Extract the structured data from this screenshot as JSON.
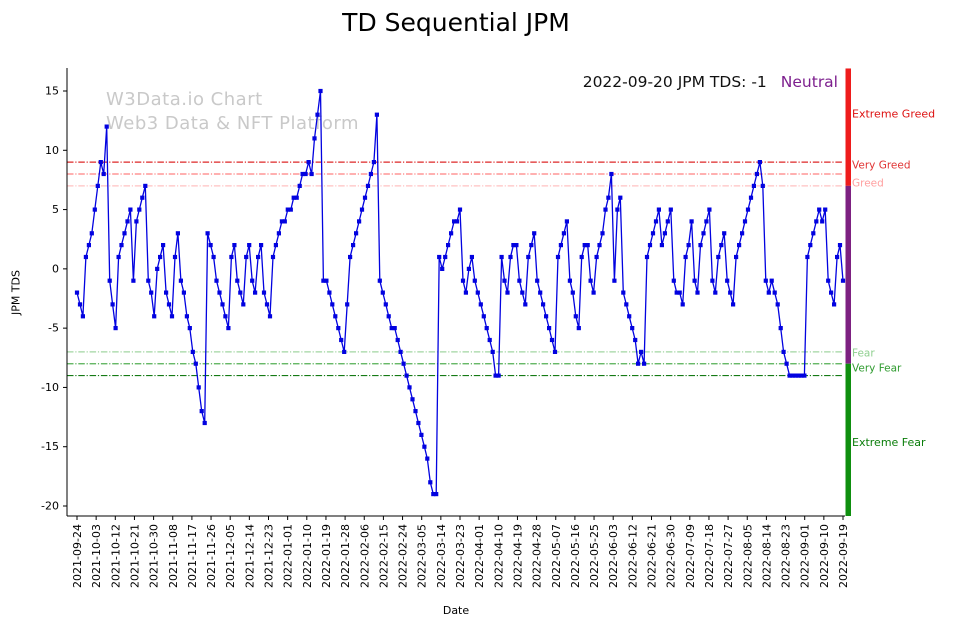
{
  "title": "TD Sequential JPM",
  "watermark": {
    "line1": "W3Data.io Chart",
    "line2": "Web3 Data & NFT Platform"
  },
  "annotation": {
    "text": "2022-09-20 JPM TDS: -1",
    "status": "Neutral",
    "status_color": "#7d1f8e"
  },
  "chart_data": {
    "type": "line",
    "title": "TD Sequential JPM",
    "xlabel": "Date",
    "ylabel": "JPM TDS",
    "ylim": [
      -20.9,
      16.9
    ],
    "yticks": [
      -20,
      -15,
      -10,
      -5,
      0,
      5,
      10,
      15
    ],
    "grid": false,
    "line_color": "#0202e0",
    "marker": "square",
    "x_tick_labels": [
      "2021-09-24",
      "2021-10-03",
      "2021-10-12",
      "2021-10-21",
      "2021-10-30",
      "2021-11-08",
      "2021-11-17",
      "2021-11-26",
      "2021-12-05",
      "2021-12-14",
      "2021-12-23",
      "2022-01-01",
      "2022-01-10",
      "2022-01-19",
      "2022-01-28",
      "2022-02-06",
      "2022-02-15",
      "2022-02-24",
      "2022-03-05",
      "2022-03-14",
      "2022-03-23",
      "2022-04-01",
      "2022-04-10",
      "2022-04-19",
      "2022-04-28",
      "2022-05-07",
      "2022-05-16",
      "2022-05-25",
      "2022-06-03",
      "2022-06-12",
      "2022-06-21",
      "2022-06-30",
      "2022-07-09",
      "2022-07-18",
      "2022-07-27",
      "2022-08-05",
      "2022-08-14",
      "2022-08-23",
      "2022-09-01",
      "2022-09-10",
      "2022-09-19"
    ],
    "values": [
      -2,
      -3,
      -4,
      1,
      2,
      3,
      5,
      7,
      9,
      8,
      12,
      -1,
      -3,
      -5,
      1,
      2,
      3,
      4,
      5,
      -1,
      4,
      5,
      6,
      7,
      -1,
      -2,
      -4,
      0,
      1,
      2,
      -2,
      -3,
      -4,
      1,
      3,
      -1,
      -2,
      -4,
      -5,
      -7,
      -8,
      -10,
      -12,
      -13,
      3,
      2,
      1,
      -1,
      -2,
      -3,
      -4,
      -5,
      1,
      2,
      -1,
      -2,
      -3,
      1,
      2,
      -1,
      -2,
      1,
      2,
      -2,
      -3,
      -4,
      1,
      2,
      3,
      4,
      4,
      5,
      5,
      6,
      6,
      7,
      8,
      8,
      9,
      8,
      11,
      13,
      15,
      -1,
      -1,
      -2,
      -3,
      -4,
      -5,
      -6,
      -7,
      -3,
      1,
      2,
      3,
      4,
      5,
      6,
      7,
      8,
      9,
      13,
      -1,
      -2,
      -3,
      -4,
      -5,
      -5,
      -6,
      -7,
      -8,
      -9,
      -10,
      -11,
      -12,
      -13,
      -14,
      -15,
      -16,
      -18,
      -19,
      -19,
      1,
      0,
      1,
      2,
      3,
      4,
      4,
      5,
      -1,
      -2,
      0,
      1,
      -1,
      -2,
      -3,
      -4,
      -5,
      -6,
      -7,
      -9,
      -9,
      1,
      -1,
      -2,
      1,
      2,
      2,
      -1,
      -2,
      -3,
      1,
      2,
      3,
      -1,
      -2,
      -3,
      -4,
      -5,
      -6,
      -7,
      1,
      2,
      3,
      4,
      -1,
      -2,
      -4,
      -5,
      1,
      2,
      2,
      -1,
      -2,
      1,
      2,
      3,
      5,
      6,
      8,
      -1,
      5,
      6,
      -2,
      -3,
      -4,
      -5,
      -6,
      -8,
      -7,
      -8,
      1,
      2,
      3,
      4,
      5,
      2,
      3,
      4,
      5,
      -1,
      -2,
      -2,
      -3,
      1,
      2,
      4,
      -1,
      -2,
      2,
      3,
      4,
      5,
      -1,
      -2,
      1,
      2,
      3,
      -1,
      -2,
      -3,
      1,
      2,
      3,
      4,
      5,
      6,
      7,
      8,
      9,
      7,
      -1,
      -2,
      -1,
      -2,
      -3,
      -5,
      -7,
      -8,
      -9,
      -9,
      -9,
      -9,
      -9,
      -9,
      1,
      2,
      3,
      4,
      5,
      4,
      5,
      -1,
      -2,
      -3,
      1,
      2,
      -1
    ],
    "thresholds": [
      {
        "value": 9,
        "color": "#dd2727",
        "label": "Very Greed",
        "label_value": 8.7,
        "label_color": "#e03232"
      },
      {
        "value": 8,
        "color": "#ff8080",
        "label": "",
        "label_value": 0,
        "label_color": "#ff8080"
      },
      {
        "value": 7,
        "color": "#ffc2c2",
        "label": "Greed",
        "label_value": 7.2,
        "label_color": "#ff9f9f"
      },
      {
        "value": -7,
        "color": "#a2d6a2",
        "label": "Fear",
        "label_value": -7.15,
        "label_color": "#8fcf8f"
      },
      {
        "value": -8,
        "color": "#52ae52",
        "label": "Very Fear",
        "label_value": -8.4,
        "label_color": "#2f9b2f"
      },
      {
        "value": -9,
        "color": "#157a15",
        "label": "",
        "label_value": 0,
        "label_color": "#157a15"
      }
    ],
    "zones": [
      {
        "from": 16.9,
        "to": 7,
        "color": "#ee1c1c",
        "label": "Extreme Greed",
        "label_value": 13,
        "label_color": "#dd1111"
      },
      {
        "from": 7,
        "to": -8,
        "color": "#7d2181",
        "label": "",
        "label_value": 0,
        "label_color": "#7d2181"
      },
      {
        "from": -8,
        "to": -20.9,
        "color": "#0f8f0f",
        "label": "Extreme Fear",
        "label_value": -14.7,
        "label_color": "#0a7d0a"
      }
    ]
  }
}
